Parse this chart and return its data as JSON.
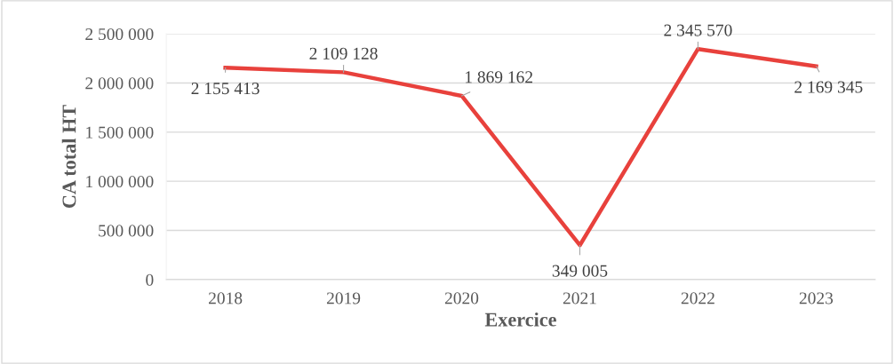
{
  "chart_data": {
    "type": "line",
    "xlabel": "Exercice",
    "ylabel": "CA total HT",
    "categories": [
      "2018",
      "2019",
      "2020",
      "2021",
      "2022",
      "2023"
    ],
    "series": [
      {
        "color": "#e8413c",
        "values": [
          2155413,
          2109128,
          1869162,
          349005,
          2345570,
          2169345
        ],
        "value_labels": [
          "2 155 413",
          "2 109 128",
          "1 869 162",
          "349 005",
          "2 345 570",
          "2 169 345"
        ]
      }
    ],
    "ylim": [
      0,
      2500000
    ],
    "yticks": [
      {
        "value": 0,
        "label": "0"
      },
      {
        "value": 500000,
        "label": "500 000"
      },
      {
        "value": 1000000,
        "label": "1 000 000"
      },
      {
        "value": 1500000,
        "label": "1 500 000"
      },
      {
        "value": 2000000,
        "label": "2 000 000"
      },
      {
        "value": 2500000,
        "label": "2 500 000"
      }
    ],
    "grid": "y",
    "marker": "none",
    "line_style": "solid"
  }
}
